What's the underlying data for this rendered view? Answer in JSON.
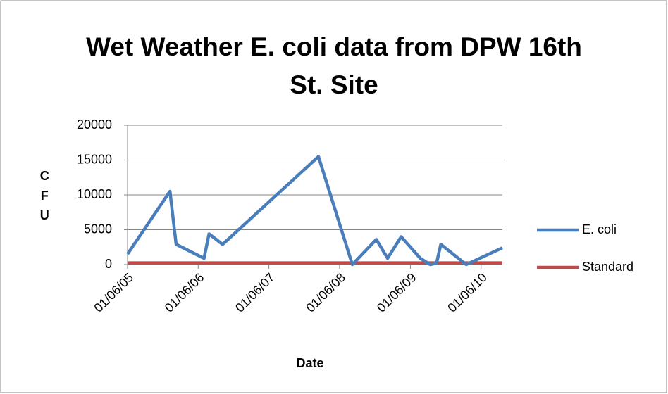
{
  "chart_data": {
    "type": "line",
    "title": "Wet Weather E. coli data from DPW 16th St. Site",
    "x_label": "Date",
    "y_label": "CFU",
    "x": [
      "01/06/05",
      "08/13/05",
      "09/14/05",
      "02/05/06",
      "03/03/06",
      "05/12/06",
      "09/19/07",
      "03/12/08",
      "07/14/08",
      "09/10/08",
      "11/19/08",
      "02/26/09",
      "04/18/09",
      "05/21/09",
      "06/12/09",
      "10/21/09",
      "04/26/10"
    ],
    "series": [
      {
        "name": "E. coli",
        "color": "#4a7ebb",
        "values": [
          1500,
          10500,
          2900,
          900,
          4400,
          2900,
          15500,
          0,
          3600,
          900,
          4000,
          900,
          0,
          200,
          2900,
          0,
          2400
        ]
      },
      {
        "name": "Standard",
        "color": "#be4b48",
        "values": [
          235,
          235,
          235,
          235,
          235,
          235,
          235,
          235,
          235,
          235,
          235,
          235,
          235,
          235,
          235,
          235,
          235
        ]
      }
    ],
    "xlim": [
      "01/06/05",
      "04/26/10"
    ],
    "xticks": [
      "01/06/05",
      "01/06/06",
      "01/06/07",
      "01/06/08",
      "01/06/09",
      "01/06/10"
    ],
    "ylim": [
      0,
      20000
    ],
    "yticks": [
      0,
      5000,
      10000,
      15000,
      20000
    ],
    "grid": true,
    "legend": "right"
  }
}
